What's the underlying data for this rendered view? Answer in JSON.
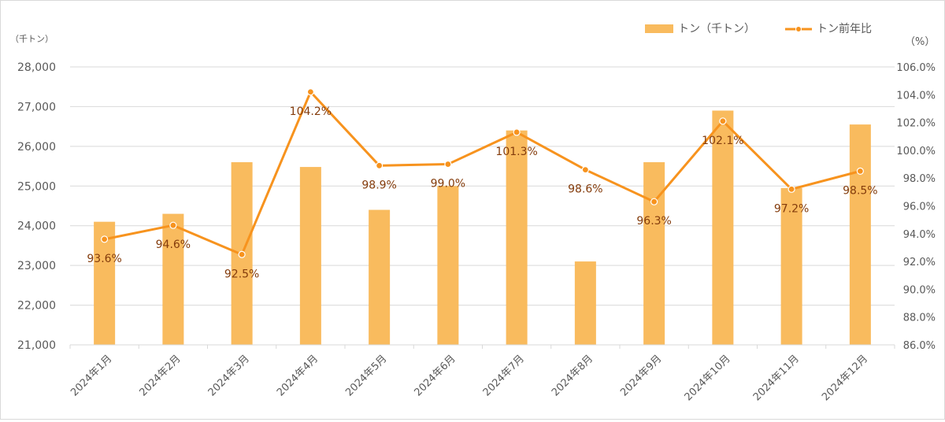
{
  "chart_data": {
    "type": "bar",
    "categories": [
      "2024年1月",
      "2024年2月",
      "2024年3月",
      "2024年4月",
      "2024年5月",
      "2024年6月",
      "2024年7月",
      "2024年8月",
      "2024年9月",
      "2024年10月",
      "2024年11月",
      "2024年12月"
    ],
    "series": [
      {
        "name": "トン（千トン）",
        "type": "bar",
        "axis": "left",
        "color": "#f9bb5e",
        "values": [
          24100,
          24300,
          25600,
          25480,
          24400,
          25000,
          26400,
          23100,
          25600,
          26900,
          24950,
          26550
        ]
      },
      {
        "name": "トン前年比",
        "type": "line",
        "axis": "right",
        "color": "#f7931e",
        "values": [
          93.6,
          94.6,
          92.5,
          104.2,
          98.9,
          99.0,
          101.3,
          98.6,
          96.3,
          102.1,
          97.2,
          98.5
        ],
        "data_labels": [
          "93.6%",
          "94.6%",
          "92.5%",
          "104.2%",
          "98.9%",
          "99.0%",
          "101.3%",
          "98.6%",
          "96.3%",
          "102.1%",
          "97.2%",
          "98.5%"
        ]
      }
    ],
    "left_axis": {
      "unit_label": "（千トン）",
      "ylim": [
        21000,
        28000
      ],
      "ticks": [
        21000,
        22000,
        23000,
        24000,
        25000,
        26000,
        27000,
        28000
      ],
      "tick_labels": [
        "21,000",
        "22,000",
        "23,000",
        "24,000",
        "25,000",
        "26,000",
        "27,000",
        "28,000"
      ]
    },
    "right_axis": {
      "unit_label": "（%）",
      "ylim": [
        86,
        106
      ],
      "ticks": [
        86,
        88,
        90,
        92,
        94,
        96,
        98,
        100,
        102,
        104,
        106
      ],
      "tick_labels": [
        "86.0%",
        "88.0%",
        "90.0%",
        "92.0%",
        "94.0%",
        "96.0%",
        "98.0%",
        "100.0%",
        "102.0%",
        "104.0%",
        "106.0%"
      ]
    },
    "grid": true,
    "legend_position": "top-right",
    "colors": {
      "bar": "#f9bb5e",
      "line": "#f7931e",
      "grid": "#d9d9d9",
      "label": "#595959",
      "data_label": "#843c0c"
    }
  }
}
